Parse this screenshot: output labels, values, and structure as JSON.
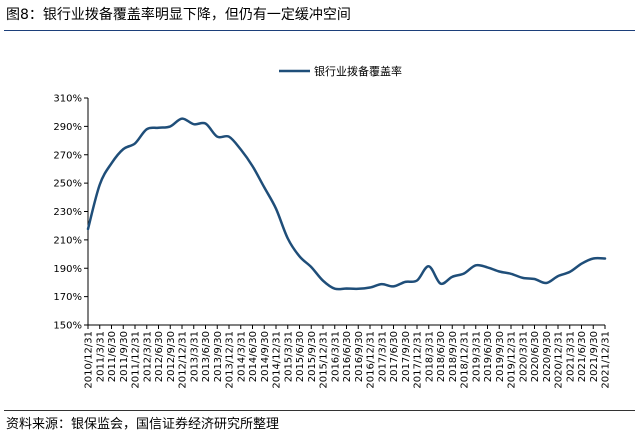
{
  "figure": {
    "title": "图8：银行业拨备覆盖率明显下降，但仍有一定缓冲空间",
    "source": "资料来源：银保监会，国信证券经济研究所整理"
  },
  "chart_data": {
    "type": "line",
    "title": "",
    "xlabel": "",
    "ylabel": "",
    "ylim": [
      150,
      310
    ],
    "y_ticks": [
      "150%",
      "170%",
      "190%",
      "210%",
      "230%",
      "250%",
      "270%",
      "290%",
      "310%"
    ],
    "x_tick_labels": [
      "2010/12/31",
      "2011/3/31",
      "2011/6/30",
      "2011/9/30",
      "2011/12/31",
      "2012/3/31",
      "2012/6/30",
      "2012/9/30",
      "2012/12/31",
      "2013/3/31",
      "2013/6/30",
      "2013/9/30",
      "2013/12/31",
      "2014/3/31",
      "2014/6/30",
      "2014/9/30",
      "2014/12/31",
      "2015/3/31",
      "2015/6/30",
      "2015/9/30",
      "2015/12/31",
      "2016/3/31",
      "2016/6/30",
      "2016/9/30",
      "2016/12/31",
      "2017/3/31",
      "2017/6/30",
      "2017/9/30",
      "2017/12/31",
      "2018/3/31",
      "2018/6/30",
      "2018/9/30",
      "2018/12/31",
      "2019/3/31",
      "2019/6/30",
      "2019/9/30",
      "2019/12/31",
      "2020/3/31",
      "2020/6/30",
      "2020/9/30",
      "2020/12/31",
      "2021/3/31",
      "2021/6/30",
      "2021/9/30",
      "2021/12/31"
    ],
    "legend_position": "top-center",
    "grid": false,
    "series": [
      {
        "name": "银行业拨备覆盖率",
        "color": "#1f4e79",
        "values": [
          217.7,
          249,
          264,
          274,
          278,
          288,
          289,
          290,
          295.5,
          291.5,
          292,
          282.7,
          282.7,
          273.7,
          262,
          247,
          232,
          211,
          198.4,
          190.8,
          181.2,
          175.6,
          175.7,
          175.5,
          176.4,
          178.8,
          177.2,
          180.4,
          181.4,
          191.4,
          179.2,
          184,
          186.3,
          192.1,
          190.6,
          187.7,
          186.1,
          183.2,
          182.4,
          179.6,
          184.5,
          187.4,
          193.2,
          196.9,
          196.9
        ]
      }
    ]
  }
}
